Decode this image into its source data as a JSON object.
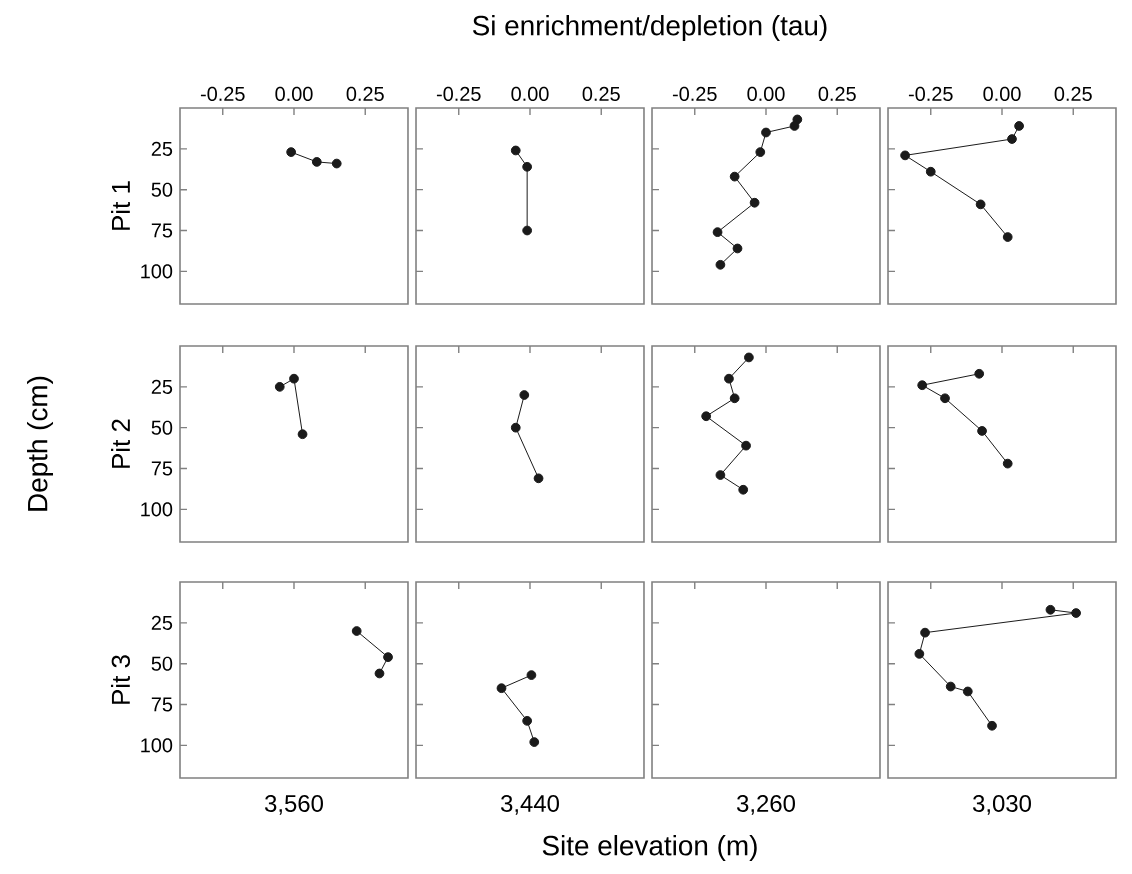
{
  "chart_data": [
    {
      "type": "line",
      "marker": "circle",
      "ylabel": "Pit 1",
      "xlim": [
        -0.4,
        0.4
      ],
      "ylim": [
        120,
        0
      ],
      "xticks": [
        {
          "value": -0.25,
          "label": "-0.25"
        },
        {
          "value": 0,
          "label": "0.00"
        },
        {
          "value": 0.25,
          "label": "0.25"
        }
      ],
      "yticks": [
        25,
        50,
        75,
        100
      ],
      "annotations": [
        "Si enrichment/depletion (tau)",
        "Depth (cm)",
        "Site elevation (m)"
      ],
      "series": [
        {
          "color": "#1a1a1a",
          "x": [
            -0.01,
            0.08,
            0.15
          ],
          "values": [
            27,
            33,
            34
          ]
        }
      ]
    },
    {
      "type": "line",
      "marker": "circle",
      "tick_labels": "x",
      "xlim": [
        -0.4,
        0.4
      ],
      "ylim": [
        120,
        0
      ],
      "xticks": [
        {
          "value": -0.25,
          "label": "-0.25"
        },
        {
          "value": 0,
          "label": "0.00"
        },
        {
          "value": 0.25,
          "label": "0.25"
        }
      ],
      "yticks": [
        {
          "value": 25,
          "label": null
        },
        {
          "value": 50,
          "label": null
        },
        {
          "value": 75,
          "label": null
        },
        {
          "value": 100,
          "label": null
        }
      ],
      "series": [
        {
          "color": "#1a1a1a",
          "x": [
            -0.05,
            -0.01,
            -0.01
          ],
          "values": [
            26,
            36,
            75
          ]
        }
      ]
    },
    {
      "type": "line",
      "marker": "circle",
      "tick_labels": "x",
      "xlim": [
        -0.4,
        0.4
      ],
      "ylim": [
        120,
        0
      ],
      "xticks": [
        {
          "value": -0.25,
          "label": "-0.25"
        },
        {
          "value": 0,
          "label": "0.00"
        },
        {
          "value": 0.25,
          "label": "0.25"
        }
      ],
      "yticks": [
        {
          "value": 25,
          "label": null
        },
        {
          "value": 50,
          "label": null
        },
        {
          "value": 75,
          "label": null
        },
        {
          "value": 100,
          "label": null
        }
      ],
      "series": [
        {
          "color": "#1a1a1a",
          "x": [
            0.11,
            0.1,
            0.0,
            -0.02,
            -0.11,
            -0.04,
            -0.17,
            -0.1,
            -0.16
          ],
          "values": [
            7,
            11,
            15,
            27,
            42,
            58,
            76,
            86,
            96
          ]
        }
      ]
    },
    {
      "type": "line",
      "marker": "circle",
      "tick_labels": "x",
      "xlim": [
        -0.4,
        0.4
      ],
      "ylim": [
        120,
        0
      ],
      "xticks": [
        {
          "value": -0.25,
          "label": "-0.25"
        },
        {
          "value": 0,
          "label": "0.00"
        },
        {
          "value": 0.25,
          "label": "0.25"
        }
      ],
      "yticks": [
        {
          "value": 25,
          "label": null
        },
        {
          "value": 50,
          "label": null
        },
        {
          "value": 75,
          "label": null
        },
        {
          "value": 100,
          "label": null
        }
      ],
      "series": [
        {
          "color": "#1a1a1a",
          "x": [
            0.06,
            0.035,
            -0.34,
            -0.25,
            -0.075,
            0.02
          ],
          "values": [
            11,
            19,
            29,
            39,
            59,
            79
          ]
        }
      ]
    },
    {
      "type": "line",
      "marker": "circle",
      "tick_labels": "y",
      "ylabel": "Pit 2",
      "xlim": [
        -0.4,
        0.4
      ],
      "ylim": [
        120,
        0
      ],
      "xticks": [
        {
          "value": -0.25,
          "label": null
        },
        {
          "value": 0,
          "label": null
        },
        {
          "value": 0.25,
          "label": null
        }
      ],
      "yticks": [
        25,
        50,
        75,
        100
      ],
      "series": [
        {
          "color": "#1a1a1a",
          "x": [
            -0.05,
            0.0,
            0.03
          ],
          "values": [
            25,
            20,
            54
          ]
        }
      ]
    },
    {
      "type": "line",
      "marker": "circle",
      "tick_labels": false,
      "xlim": [
        -0.4,
        0.4
      ],
      "ylim": [
        120,
        0
      ],
      "xticks": [
        {
          "value": -0.25,
          "label": null
        },
        {
          "value": 0,
          "label": null
        },
        {
          "value": 0.25,
          "label": null
        }
      ],
      "yticks": [
        {
          "value": 25,
          "label": null
        },
        {
          "value": 50,
          "label": null
        },
        {
          "value": 75,
          "label": null
        },
        {
          "value": 100,
          "label": null
        }
      ],
      "series": [
        {
          "color": "#1a1a1a",
          "x": [
            -0.02,
            -0.05,
            0.03
          ],
          "values": [
            30,
            50,
            81
          ]
        }
      ]
    },
    {
      "type": "line",
      "marker": "circle",
      "tick_labels": false,
      "xlim": [
        -0.4,
        0.4
      ],
      "ylim": [
        120,
        0
      ],
      "xticks": [
        {
          "value": -0.25,
          "label": null
        },
        {
          "value": 0,
          "label": null
        },
        {
          "value": 0.25,
          "label": null
        }
      ],
      "yticks": [
        {
          "value": 25,
          "label": null
        },
        {
          "value": 50,
          "label": null
        },
        {
          "value": 75,
          "label": null
        },
        {
          "value": 100,
          "label": null
        }
      ],
      "series": [
        {
          "color": "#1a1a1a",
          "x": [
            -0.06,
            -0.13,
            -0.11,
            -0.21,
            -0.07,
            -0.16,
            -0.08
          ],
          "values": [
            7,
            20,
            32,
            43,
            61,
            79,
            88
          ]
        }
      ]
    },
    {
      "type": "line",
      "marker": "circle",
      "tick_labels": false,
      "xlim": [
        -0.4,
        0.4
      ],
      "ylim": [
        120,
        0
      ],
      "xticks": [
        {
          "value": -0.25,
          "label": null
        },
        {
          "value": 0,
          "label": null
        },
        {
          "value": 0.25,
          "label": null
        }
      ],
      "yticks": [
        {
          "value": 25,
          "label": null
        },
        {
          "value": 50,
          "label": null
        },
        {
          "value": 75,
          "label": null
        },
        {
          "value": 100,
          "label": null
        }
      ],
      "series": [
        {
          "color": "#1a1a1a",
          "x": [
            -0.08,
            -0.28,
            -0.2,
            -0.07,
            0.02
          ],
          "values": [
            17,
            24,
            32,
            52,
            72
          ]
        }
      ]
    },
    {
      "type": "line",
      "marker": "circle",
      "tick_labels": "y",
      "ylabel": "Pit 3",
      "xlabel": "3,560",
      "xlim": [
        -0.4,
        0.4
      ],
      "ylim": [
        120,
        0
      ],
      "xticks": [
        {
          "value": -0.25,
          "label": null
        },
        {
          "value": 0,
          "label": null
        },
        {
          "value": 0.25,
          "label": null
        }
      ],
      "yticks": [
        25,
        50,
        75,
        100
      ],
      "series": [
        {
          "color": "#1a1a1a",
          "x": [
            0.22,
            0.33,
            0.3
          ],
          "values": [
            30,
            46,
            56
          ]
        }
      ]
    },
    {
      "type": "line",
      "marker": "circle",
      "tick_labels": false,
      "xlabel": "3,440",
      "xlim": [
        -0.4,
        0.4
      ],
      "ylim": [
        120,
        0
      ],
      "xticks": [
        {
          "value": -0.25,
          "label": null
        },
        {
          "value": 0,
          "label": null
        },
        {
          "value": 0.25,
          "label": null
        }
      ],
      "yticks": [
        {
          "value": 25,
          "label": null
        },
        {
          "value": 50,
          "label": null
        },
        {
          "value": 75,
          "label": null
        },
        {
          "value": 100,
          "label": null
        }
      ],
      "series": [
        {
          "color": "#1a1a1a",
          "x": [
            0.005,
            -0.1,
            -0.01,
            0.015
          ],
          "values": [
            57,
            65,
            85,
            98
          ]
        }
      ]
    },
    {
      "type": "line",
      "tick_labels": false,
      "xlabel": "3,260",
      "xlim": [
        -0.4,
        0.4
      ],
      "ylim": [
        120,
        0
      ],
      "xticks": [
        {
          "value": -0.25,
          "label": null
        },
        {
          "value": 0,
          "label": null
        },
        {
          "value": 0.25,
          "label": null
        }
      ],
      "yticks": [
        {
          "value": 25,
          "label": null
        },
        {
          "value": 50,
          "label": null
        },
        {
          "value": 75,
          "label": null
        },
        {
          "value": 100,
          "label": null
        }
      ]
    },
    {
      "type": "line",
      "marker": "circle",
      "tick_labels": false,
      "xlabel": "3,030",
      "xlim": [
        -0.4,
        0.4
      ],
      "ylim": [
        120,
        0
      ],
      "xticks": [
        {
          "value": -0.25,
          "label": null
        },
        {
          "value": 0,
          "label": null
        },
        {
          "value": 0.25,
          "label": null
        }
      ],
      "yticks": [
        {
          "value": 25,
          "label": null
        },
        {
          "value": 50,
          "label": null
        },
        {
          "value": 75,
          "label": null
        },
        {
          "value": 100,
          "label": null
        }
      ],
      "series": [
        {
          "color": "#1a1a1a",
          "x": [
            0.17,
            0.26,
            -0.27,
            -0.29,
            -0.18,
            -0.12,
            -0.035
          ],
          "values": [
            17,
            19,
            31,
            44,
            64,
            67,
            88
          ]
        }
      ]
    }
  ]
}
